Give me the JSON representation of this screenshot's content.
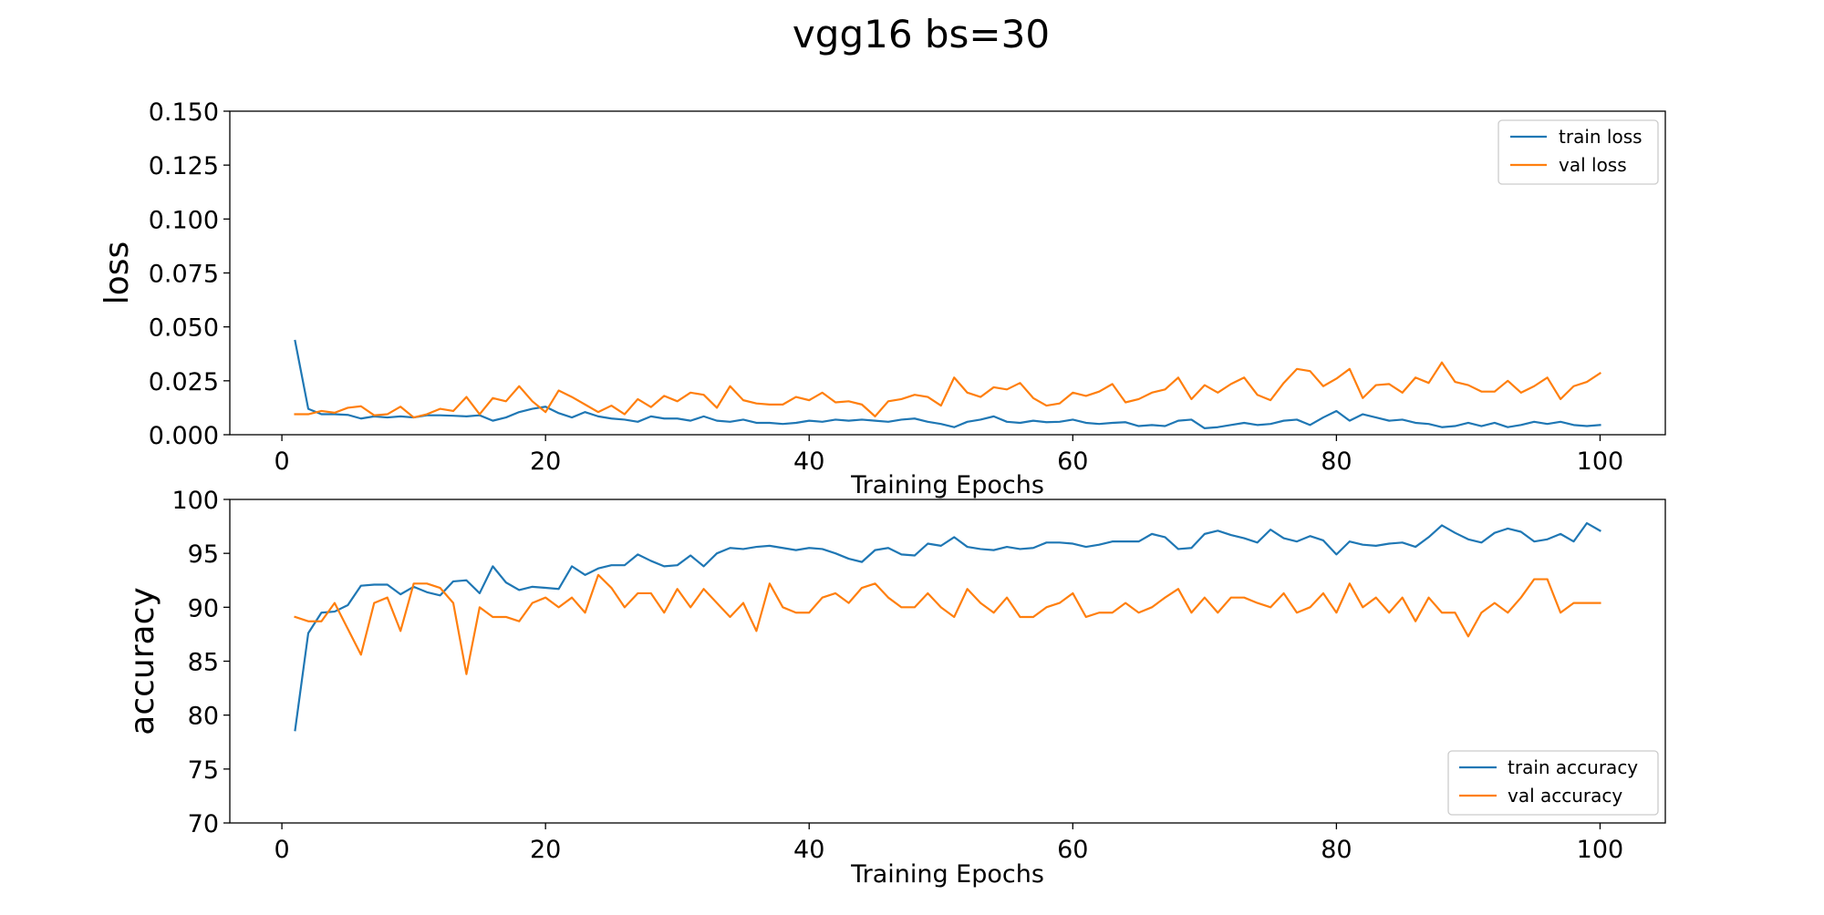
{
  "figure": {
    "title": "vgg16 bs=30"
  },
  "chart_data": [
    {
      "type": "line",
      "ylabel": "loss",
      "xlabel": "Training Epochs",
      "xlim": [
        -3.95,
        104.95
      ],
      "ylim": [
        0,
        0.15
      ],
      "xticks": [
        0,
        20,
        40,
        60,
        80,
        100
      ],
      "xtick_labels": [
        "0",
        "20",
        "40",
        "60",
        "80",
        "100"
      ],
      "yticks": [
        0,
        0.025,
        0.05,
        0.075,
        0.1,
        0.125,
        0.15
      ],
      "ytick_labels": [
        "0.000",
        "0.025",
        "0.050",
        "0.075",
        "0.100",
        "0.125",
        "0.150"
      ],
      "grid": false,
      "legend_position": "upper right",
      "x_start": 1,
      "series": [
        {
          "name": "train loss",
          "color": "#1f77b4",
          "values": [
            0.0435,
            0.012,
            0.0095,
            0.0095,
            0.0092,
            0.0075,
            0.0085,
            0.008,
            0.0085,
            0.008,
            0.009,
            0.009,
            0.0088,
            0.0085,
            0.009,
            0.0065,
            0.008,
            0.0105,
            0.012,
            0.013,
            0.01,
            0.008,
            0.0105,
            0.0085,
            0.0075,
            0.007,
            0.006,
            0.0085,
            0.0075,
            0.0075,
            0.0065,
            0.0085,
            0.0065,
            0.006,
            0.007,
            0.0055,
            0.0055,
            0.005,
            0.0055,
            0.0065,
            0.006,
            0.007,
            0.0065,
            0.007,
            0.0065,
            0.006,
            0.007,
            0.0075,
            0.006,
            0.005,
            0.0035,
            0.006,
            0.007,
            0.0085,
            0.006,
            0.0055,
            0.0065,
            0.0058,
            0.006,
            0.007,
            0.0055,
            0.005,
            0.0055,
            0.0058,
            0.004,
            0.0045,
            0.004,
            0.0065,
            0.007,
            0.003,
            0.0035,
            0.0045,
            0.0055,
            0.0045,
            0.005,
            0.0065,
            0.007,
            0.0045,
            0.008,
            0.011,
            0.0065,
            0.0095,
            0.008,
            0.0065,
            0.007,
            0.0055,
            0.005,
            0.0035,
            0.004,
            0.0055,
            0.004,
            0.0055,
            0.0035,
            0.0045,
            0.006,
            0.005,
            0.006,
            0.0045,
            0.004,
            0.0045
          ]
        },
        {
          "name": "val loss",
          "color": "#ff7f0e",
          "values": [
            0.0095,
            0.0095,
            0.011,
            0.0102,
            0.0125,
            0.0132,
            0.009,
            0.0095,
            0.013,
            0.008,
            0.0095,
            0.012,
            0.011,
            0.0175,
            0.0095,
            0.017,
            0.0155,
            0.0225,
            0.0155,
            0.0105,
            0.0205,
            0.0175,
            0.014,
            0.0105,
            0.0135,
            0.0095,
            0.0165,
            0.0128,
            0.018,
            0.0155,
            0.0195,
            0.0185,
            0.0125,
            0.0225,
            0.016,
            0.0145,
            0.014,
            0.014,
            0.0175,
            0.016,
            0.0195,
            0.015,
            0.0155,
            0.014,
            0.0085,
            0.0155,
            0.0165,
            0.0185,
            0.0175,
            0.0135,
            0.0265,
            0.0195,
            0.0175,
            0.022,
            0.021,
            0.024,
            0.017,
            0.0135,
            0.0145,
            0.0195,
            0.018,
            0.02,
            0.0235,
            0.015,
            0.0165,
            0.0195,
            0.021,
            0.0265,
            0.0165,
            0.023,
            0.0195,
            0.0235,
            0.0265,
            0.0185,
            0.016,
            0.024,
            0.0305,
            0.0295,
            0.0225,
            0.026,
            0.0305,
            0.017,
            0.023,
            0.0235,
            0.0195,
            0.0265,
            0.024,
            0.0335,
            0.0245,
            0.023,
            0.02,
            0.02,
            0.025,
            0.0195,
            0.0225,
            0.0265,
            0.0165,
            0.0225,
            0.0245,
            0.0285
          ]
        }
      ]
    },
    {
      "type": "line",
      "ylabel": "accuracy",
      "xlabel": "Training Epochs",
      "xlim": [
        -3.95,
        104.95
      ],
      "ylim": [
        70,
        100
      ],
      "xticks": [
        0,
        20,
        40,
        60,
        80,
        100
      ],
      "xtick_labels": [
        "0",
        "20",
        "40",
        "60",
        "80",
        "100"
      ],
      "yticks": [
        70,
        75,
        80,
        85,
        90,
        95,
        100
      ],
      "ytick_labels": [
        "70",
        "75",
        "80",
        "85",
        "90",
        "95",
        "100"
      ],
      "grid": false,
      "legend_position": "lower right",
      "x_start": 1,
      "series": [
        {
          "name": "train accuracy",
          "color": "#1f77b4",
          "values": [
            78.6,
            87.6,
            89.5,
            89.6,
            90.2,
            92.0,
            92.1,
            92.1,
            91.2,
            91.9,
            91.4,
            91.1,
            92.4,
            92.5,
            91.3,
            93.8,
            92.3,
            91.6,
            91.9,
            91.8,
            91.7,
            93.8,
            93.0,
            93.6,
            93.9,
            93.9,
            94.9,
            94.3,
            93.8,
            93.9,
            94.8,
            93.8,
            95.0,
            95.5,
            95.4,
            95.6,
            95.7,
            95.5,
            95.3,
            95.5,
            95.4,
            95.0,
            94.5,
            94.2,
            95.3,
            95.5,
            94.9,
            94.8,
            95.9,
            95.7,
            96.5,
            95.6,
            95.4,
            95.3,
            95.6,
            95.4,
            95.5,
            96.0,
            96.0,
            95.9,
            95.6,
            95.8,
            96.1,
            96.1,
            96.1,
            96.8,
            96.5,
            95.4,
            95.5,
            96.8,
            97.1,
            96.7,
            96.4,
            96.0,
            97.2,
            96.4,
            96.1,
            96.6,
            96.2,
            94.9,
            96.1,
            95.8,
            95.7,
            95.9,
            96.0,
            95.6,
            96.5,
            97.6,
            96.9,
            96.3,
            96.0,
            96.9,
            97.3,
            97.0,
            96.1,
            96.3,
            96.8,
            96.1,
            97.8,
            97.1
          ]
        },
        {
          "name": "val accuracy",
          "color": "#ff7f0e",
          "values": [
            89.1,
            88.7,
            88.7,
            90.4,
            88.0,
            85.6,
            90.4,
            90.9,
            87.8,
            92.2,
            92.2,
            91.8,
            90.4,
            83.8,
            90.0,
            89.1,
            89.1,
            88.7,
            90.4,
            90.9,
            90.0,
            90.9,
            89.5,
            93.0,
            91.8,
            90.0,
            91.3,
            91.3,
            89.5,
            91.7,
            90.0,
            91.7,
            90.4,
            89.1,
            90.4,
            87.8,
            92.2,
            90.0,
            89.5,
            89.5,
            90.9,
            91.3,
            90.4,
            91.8,
            92.2,
            90.9,
            90.0,
            90.0,
            91.3,
            90.0,
            89.1,
            91.7,
            90.4,
            89.5,
            90.9,
            89.1,
            89.1,
            90.0,
            90.4,
            91.3,
            89.1,
            89.5,
            89.5,
            90.4,
            89.5,
            90.0,
            90.9,
            91.7,
            89.5,
            90.9,
            89.5,
            90.9,
            90.9,
            90.4,
            90.0,
            91.3,
            89.5,
            90.0,
            91.3,
            89.5,
            92.2,
            90.0,
            90.9,
            89.5,
            90.9,
            88.7,
            90.9,
            89.5,
            89.5,
            87.3,
            89.5,
            90.4,
            89.5,
            90.9,
            92.6,
            92.6,
            89.5,
            90.4,
            90.4,
            90.4
          ]
        }
      ]
    }
  ]
}
